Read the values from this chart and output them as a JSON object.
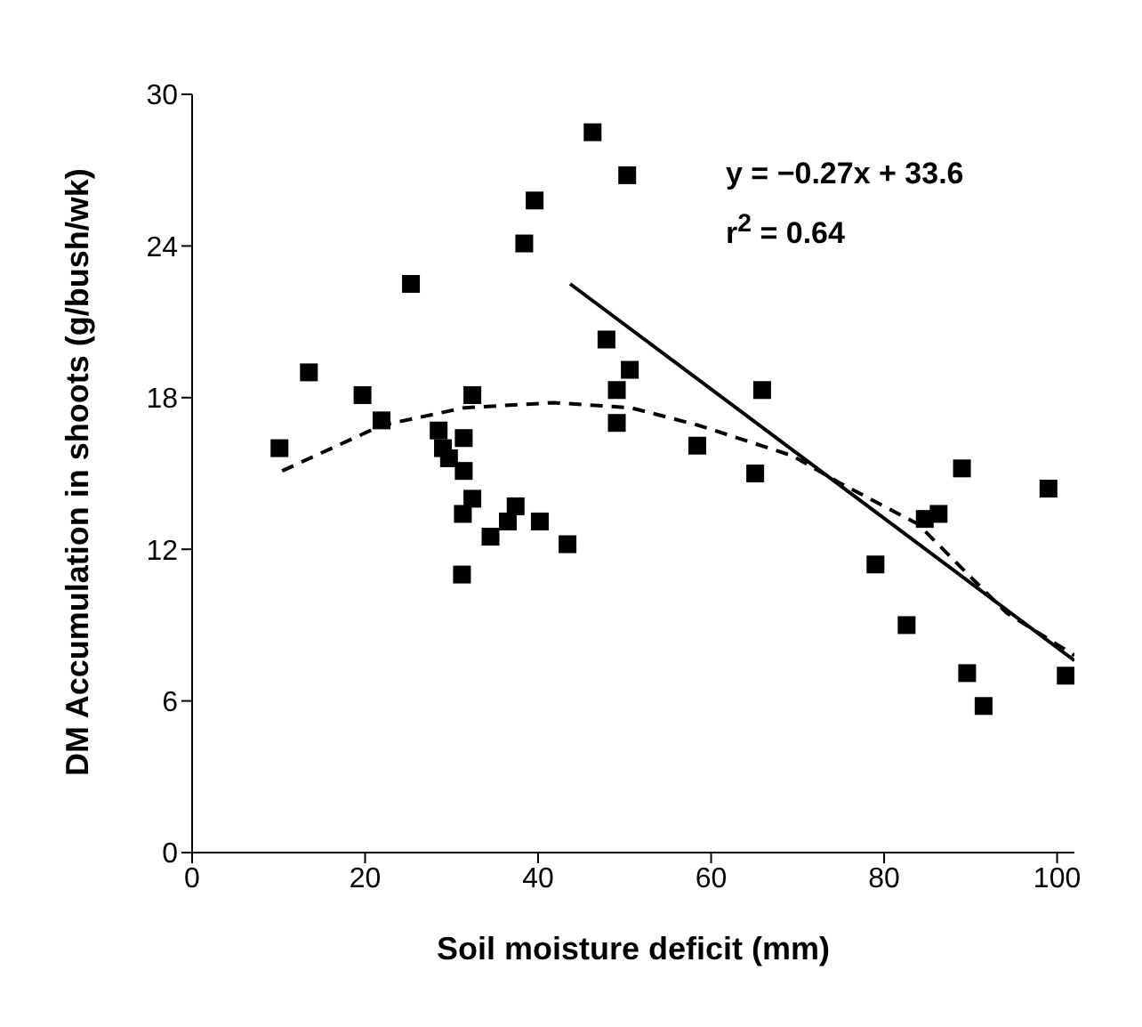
{
  "chart_data": {
    "type": "scatter",
    "xlabel": "Soil moisture deficit (mm)",
    "ylabel": "DM Accumulation in shoots (g/bush/wk)",
    "xlim": [
      0,
      102
    ],
    "xticks": [
      0,
      20,
      40,
      60,
      80,
      100
    ],
    "ylim": [
      0,
      30
    ],
    "yticks": [
      0,
      6,
      12,
      18,
      24,
      30
    ],
    "grid": false,
    "legend": false,
    "annotations": [
      "y = −0.27x + 33.6",
      "r$^{2}$ = 0.64"
    ],
    "series": [
      {
        "color": "#000000",
        "marker": "square",
        "x": [
          10.1,
          13.5,
          19.7,
          21.9,
          25.3,
          28.5,
          29.0,
          29.7,
          31.4,
          31.4,
          32.4,
          32.4,
          31.3,
          31.2,
          34.5,
          36.5,
          37.4,
          40.2,
          43.4,
          38.4,
          39.6,
          46.3,
          50.3,
          47.9,
          50.6,
          49.1,
          49.1,
          65.9,
          58.4,
          65.1,
          89.0,
          99.0,
          86.3,
          84.7,
          79.0,
          82.6,
          89.6,
          91.5,
          101.0
        ],
        "values": [
          16.0,
          19.0,
          18.1,
          17.1,
          22.5,
          16.7,
          16.0,
          15.6,
          16.4,
          15.1,
          18.1,
          14.0,
          13.4,
          11.0,
          12.5,
          13.1,
          13.7,
          13.1,
          12.2,
          24.1,
          25.8,
          28.5,
          26.8,
          20.3,
          19.1,
          18.3,
          17.0,
          18.3,
          16.1,
          15.0,
          15.2,
          14.4,
          13.4,
          13.2,
          11.4,
          9.0,
          7.1,
          5.8,
          7.0
        ]
      },
      {
        "type": "line",
        "color": "#000000",
        "marker": "none",
        "line_style": "solid",
        "x": [
          43.7,
          102
        ],
        "values": [
          22.5,
          7.6
        ]
      },
      {
        "type": "line",
        "color": "#000000",
        "marker": "none",
        "line_style": "dashed",
        "x": [
          10.4,
          21.9,
          31.5,
          41.8,
          50.7,
          58.6,
          69.4,
          75.0,
          83.9,
          94.1,
          102
        ],
        "values": [
          15.1,
          16.9,
          17.6,
          17.8,
          17.6,
          16.9,
          15.7,
          14.6,
          13.0,
          9.5,
          7.8
        ]
      }
    ]
  }
}
